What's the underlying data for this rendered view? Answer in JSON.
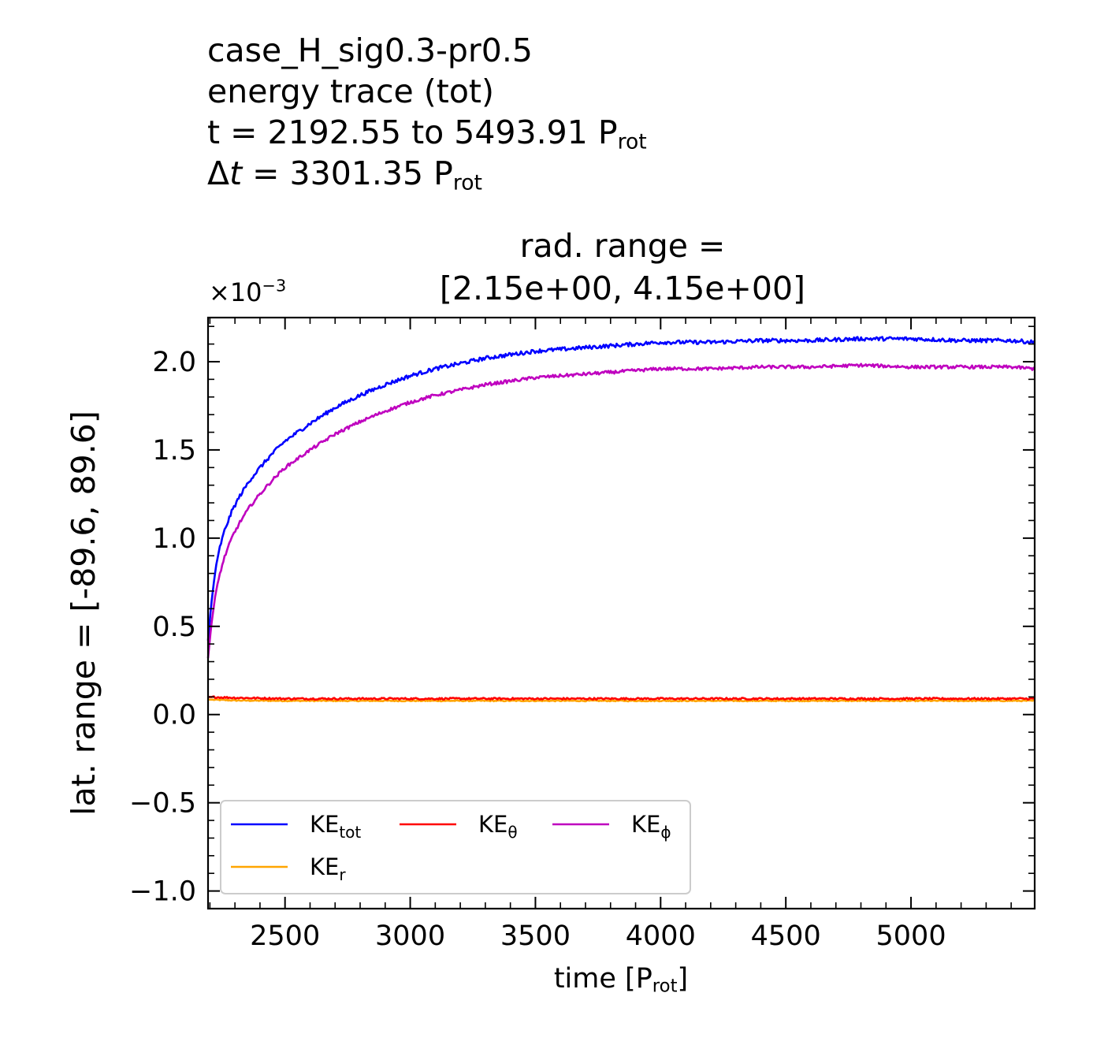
{
  "header": {
    "line1": "case_H_sig0.3-pr0.5",
    "line2": "energy trace (tot)",
    "line3_main": "t = 2192.55 to 5493.91 P",
    "line3_sub": "rot",
    "line4_delta": "Δ",
    "line4_t": "t",
    "line4_rest": " = 3301.35 P",
    "line4_sub": "rot"
  },
  "axes_title": {
    "line1": "rad. range =",
    "line2": "[2.15e+00, 4.15e+00]"
  },
  "ylabel": "lat. range = [-89.6, 89.6]",
  "xlabel_main": "time [P",
  "xlabel_sub": "rot",
  "xlabel_end": "]",
  "offset_main": "×10",
  "offset_exp": "−3",
  "chart_data": {
    "type": "line",
    "xlim": [
      2192.55,
      5493.91
    ],
    "ylim": [
      -1.1,
      2.25
    ],
    "y_scale_note": "×10^-3",
    "grid": false,
    "legend_placement": "lower-left",
    "xticks": [
      2500,
      3000,
      3500,
      4000,
      4500,
      5000
    ],
    "xtick_labels": [
      "2500",
      "3000",
      "3500",
      "4000",
      "4500",
      "5000"
    ],
    "yticks": [
      -1.0,
      -0.5,
      0.0,
      0.5,
      1.0,
      1.5,
      2.0
    ],
    "ytick_labels": [
      "−1.0",
      "−0.5",
      "0.0",
      "0.5",
      "1.0",
      "1.5",
      "2.0"
    ],
    "series": [
      {
        "name": "KE_tot",
        "label_main": "KE",
        "label_sub": "tot",
        "color": "#0000ff",
        "x": [
          2192.55,
          2205,
          2220,
          2240,
          2260,
          2290,
          2320,
          2360,
          2400,
          2450,
          2500,
          2600,
          2700,
          2800,
          2900,
          3000,
          3100,
          3200,
          3300,
          3400,
          3500,
          3600,
          3700,
          3800,
          3900,
          4000,
          4200,
          4400,
          4600,
          4800,
          5000,
          5200,
          5400,
          5493.91
        ],
        "y": [
          0.42,
          0.62,
          0.8,
          0.95,
          1.05,
          1.16,
          1.24,
          1.33,
          1.4,
          1.48,
          1.55,
          1.65,
          1.74,
          1.81,
          1.87,
          1.92,
          1.96,
          1.99,
          2.02,
          2.04,
          2.06,
          2.07,
          2.08,
          2.09,
          2.1,
          2.11,
          2.11,
          2.12,
          2.12,
          2.13,
          2.13,
          2.12,
          2.12,
          2.11
        ]
      },
      {
        "name": "KE_θ",
        "label_main": "KE",
        "label_sub": "θ",
        "color": "#ff0000",
        "x": [
          2192.55,
          2300,
          2500,
          3000,
          3500,
          4000,
          4500,
          5000,
          5493.91
        ],
        "y": [
          0.1,
          0.095,
          0.09,
          0.09,
          0.09,
          0.09,
          0.09,
          0.09,
          0.09
        ]
      },
      {
        "name": "KE_φ",
        "label_main": "KE",
        "label_sub": "ϕ",
        "color": "#bf00bf",
        "x": [
          2192.55,
          2205,
          2220,
          2240,
          2260,
          2290,
          2320,
          2360,
          2400,
          2450,
          2500,
          2600,
          2700,
          2800,
          2900,
          3000,
          3100,
          3200,
          3300,
          3400,
          3500,
          3600,
          3700,
          3800,
          3900,
          4000,
          4200,
          4400,
          4600,
          4800,
          5000,
          5200,
          5400,
          5493.91
        ],
        "y": [
          0.32,
          0.5,
          0.66,
          0.8,
          0.9,
          1.01,
          1.09,
          1.18,
          1.25,
          1.33,
          1.4,
          1.5,
          1.59,
          1.66,
          1.72,
          1.77,
          1.81,
          1.84,
          1.87,
          1.89,
          1.91,
          1.92,
          1.93,
          1.94,
          1.95,
          1.96,
          1.96,
          1.97,
          1.97,
          1.98,
          1.97,
          1.97,
          1.97,
          1.96
        ]
      },
      {
        "name": "KE_r",
        "label_main": "KE",
        "label_sub": "r",
        "color": "#ffa500",
        "x": [
          2192.55,
          2300,
          2500,
          3000,
          3500,
          4000,
          4500,
          5000,
          5493.91
        ],
        "y": [
          0.085,
          0.08,
          0.078,
          0.078,
          0.078,
          0.078,
          0.078,
          0.078,
          0.078
        ]
      }
    ]
  }
}
